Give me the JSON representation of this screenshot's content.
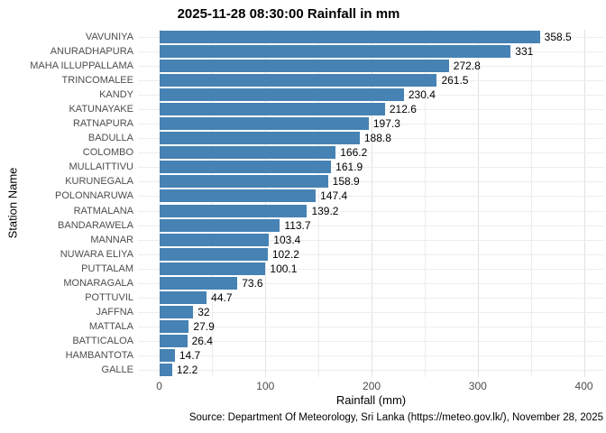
{
  "title": "2025-11-28 08:30:00 Rainfall in mm",
  "axes": {
    "x_label": "Rainfall (mm)",
    "y_label": "Station Name",
    "x_ticks": [
      0,
      100,
      200,
      300,
      400
    ]
  },
  "caption": "Source: Department Of Meteorology, Sri Lanka (https://meteo.gov.lk/), November 28, 2025",
  "colors": {
    "bar": "#4682B4",
    "grid_major": "#e2e2e2",
    "grid_minor": "#ededed",
    "tick_text": "#4d4d4d",
    "label_text": "#000000"
  },
  "chart_data": {
    "type": "bar",
    "orientation": "horizontal",
    "title": "2025-11-28 08:30:00 Rainfall in mm",
    "xlabel": "Rainfall (mm)",
    "ylabel": "Station Name",
    "xlim": [
      0,
      400
    ],
    "x_tick_step": 100,
    "x_minor_step": 50,
    "grid": true,
    "legend": false,
    "categories": [
      "VAVUNIYA",
      "ANURADHAPURA",
      "MAHA ILLUPPALLAMA",
      "TRINCOMALEE",
      "KANDY",
      "KATUNAYAKE",
      "RATNAPURA",
      "BADULLA",
      "COLOMBO",
      "MULLAITTIVU",
      "KURUNEGALA",
      "POLONNARUWA",
      "RATMALANA",
      "BANDARAWELA",
      "MANNAR",
      "NUWARA ELIYA",
      "PUTTALAM",
      "MONARAGALA",
      "POTTUVIL",
      "JAFFNA",
      "MATTALA",
      "BATTICALOA",
      "HAMBANTOTA",
      "GALLE"
    ],
    "values": [
      358.5,
      331,
      272.8,
      261.5,
      230.4,
      212.6,
      197.3,
      188.8,
      166.2,
      161.9,
      158.9,
      147.4,
      139.2,
      113.7,
      103.4,
      102.2,
      100.1,
      73.6,
      44.7,
      32,
      27.9,
      26.4,
      14.7,
      12.2
    ],
    "value_labels": [
      "358.5",
      "331",
      "272.8",
      "261.5",
      "230.4",
      "212.6",
      "197.3",
      "188.8",
      "166.2",
      "161.9",
      "158.9",
      "147.4",
      "139.2",
      "113.7",
      "103.4",
      "102.2",
      "100.1",
      "73.6",
      "44.7",
      "32",
      "27.9",
      "26.4",
      "14.7",
      "12.2"
    ]
  }
}
